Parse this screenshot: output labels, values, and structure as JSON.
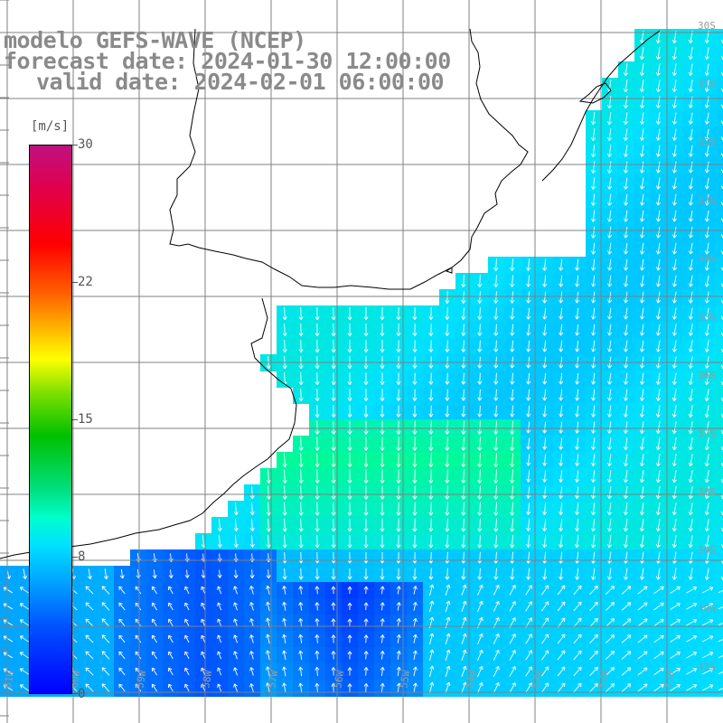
{
  "titles": {
    "model": "modelo GEFS-WAVE (NCEP)",
    "forecast": "forecast date: 2024-01-30 12:00:00",
    "valid": "valid date: 2024-02-01 06:00:00"
  },
  "colorbar": {
    "unit": "[m/s]",
    "ticks": [
      "30",
      "22",
      "15",
      "8",
      "0"
    ],
    "min": 0,
    "max": 30
  },
  "lon_labels": [
    "61W",
    "60W",
    "59W",
    "58W",
    "57W",
    "56W",
    "55W",
    "54W",
    "53W",
    "52W",
    "51W"
  ],
  "lat_labels": [
    "30S",
    "31S",
    "32S",
    "33S",
    "34S",
    "35S",
    "36S",
    "37S",
    "38S",
    "39S",
    "40S",
    "41S"
  ],
  "colors": {
    "land": "#ffffff",
    "coast": "#000000",
    "grid": "#808080",
    "label": "#8a8a8a"
  }
}
